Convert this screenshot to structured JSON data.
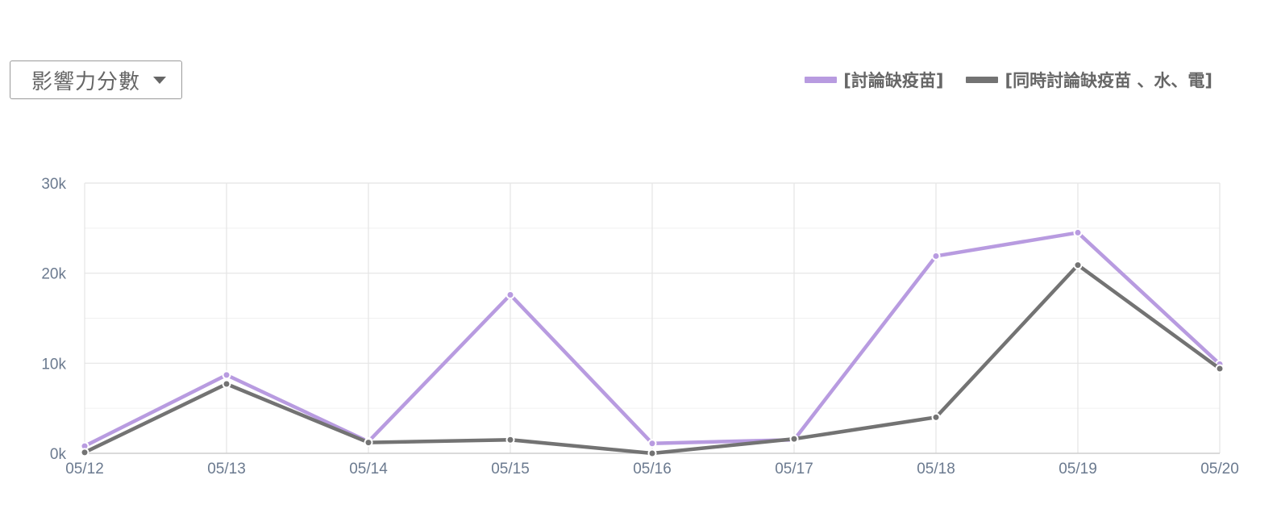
{
  "dropdown": {
    "label": "影響力分數"
  },
  "colors": {
    "series1": "#b89be0",
    "series2": "#737373",
    "grid": "#e4e4e4",
    "axis": "#cfcfcf",
    "tick": "#6b7a8f"
  },
  "chart_data": {
    "type": "line",
    "categories": [
      "05/12",
      "05/13",
      "05/14",
      "05/15",
      "05/16",
      "05/17",
      "05/18",
      "05/19",
      "05/20"
    ],
    "yticks": [
      "0k",
      "10k",
      "20k",
      "30k"
    ],
    "ylim": [
      0,
      30000
    ],
    "grid": true,
    "legend_position": "top-right",
    "series": [
      {
        "name": "[討論缺疫苗]",
        "color": "#b89be0",
        "values": [
          800,
          8700,
          1300,
          17600,
          1100,
          1500,
          21900,
          24500,
          9900
        ]
      },
      {
        "name": "[同時討論缺疫苗 、水、電]",
        "color": "#737373",
        "values": [
          100,
          7700,
          1200,
          1500,
          0,
          1600,
          4000,
          20900,
          9400
        ]
      }
    ]
  }
}
